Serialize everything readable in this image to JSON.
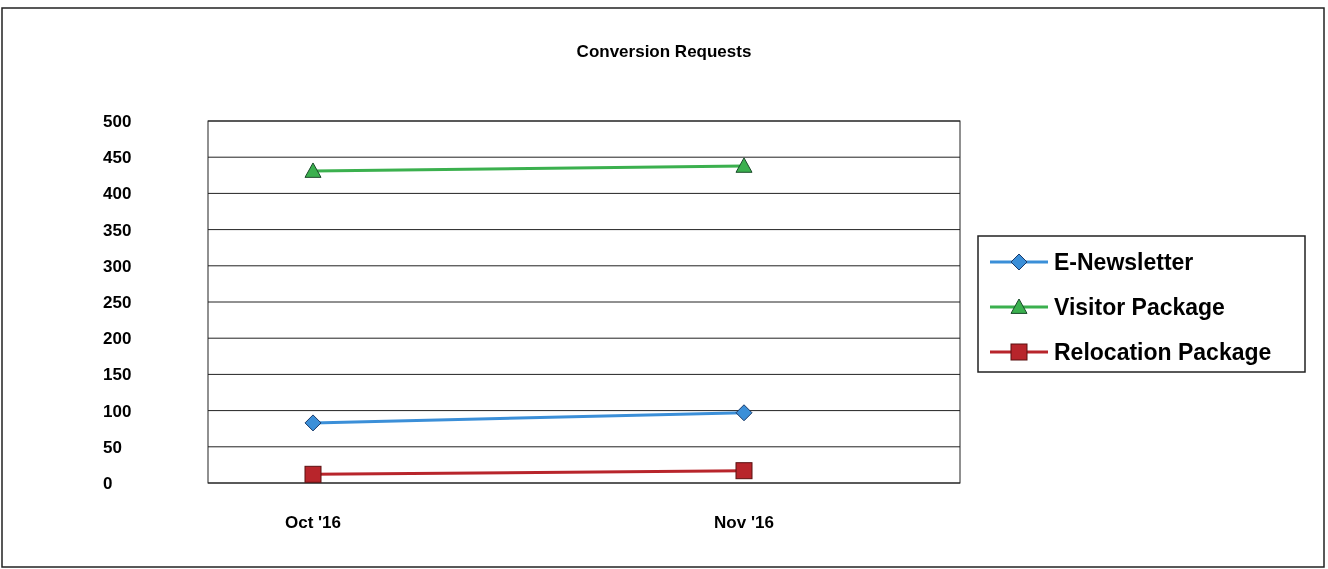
{
  "chart_data": {
    "type": "line",
    "title": "Conversion Requests",
    "categories": [
      "Oct '16",
      "Nov '16"
    ],
    "series": [
      {
        "name": "E-Newsletter",
        "color": "#3b8fd8",
        "values": [
          83,
          97
        ],
        "marker": "diamond"
      },
      {
        "name": "Visitor Package",
        "color": "#3bb04e",
        "values": [
          431,
          438
        ],
        "marker": "triangle"
      },
      {
        "name": "Relocation Package",
        "color": "#b8252b",
        "values": [
          12,
          17
        ],
        "marker": "square"
      }
    ],
    "ylim": [
      0,
      500
    ],
    "yticks": [
      0,
      50,
      100,
      150,
      200,
      250,
      300,
      350,
      400,
      450,
      500
    ],
    "grid": "y",
    "legend": "right"
  }
}
